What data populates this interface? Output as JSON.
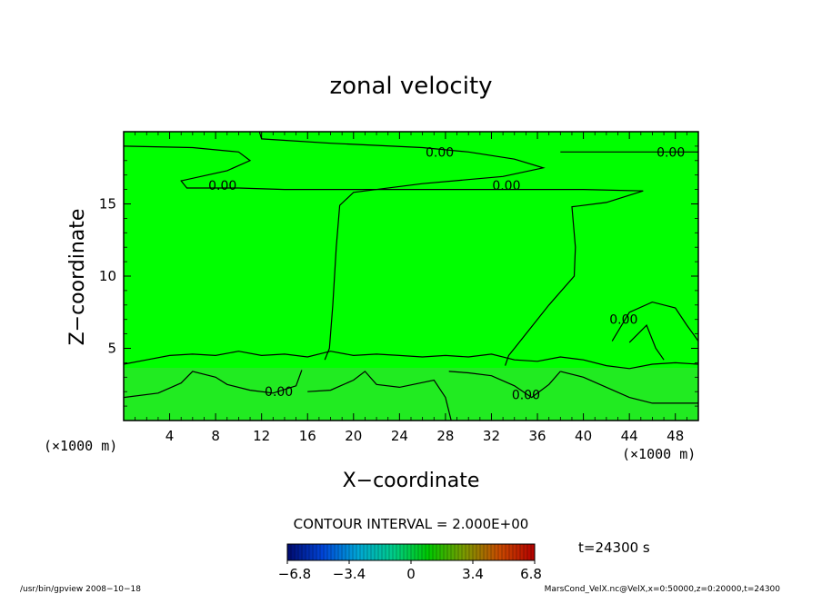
{
  "chart_data": {
    "type": "heatmap",
    "title": "zonal velocity",
    "xlabel": "X−coordinate",
    "ylabel": "Z−coordinate",
    "x_unit_left": "(×1000 m)",
    "x_unit_right": "(×1000 m)",
    "xlim": [
      0,
      50
    ],
    "ylim": [
      0,
      20
    ],
    "x_ticks": [
      4,
      8,
      12,
      16,
      20,
      24,
      28,
      32,
      36,
      40,
      44,
      48
    ],
    "y_ticks": [
      5,
      10,
      15
    ],
    "fill_color": "#00ff00",
    "contour_interval_text": "CONTOUR INTERVAL = 2.000E+00",
    "contour_labels": [
      {
        "text": "0.00",
        "x": 27.5,
        "y": 18.6
      },
      {
        "text": "0.00",
        "x": 47.6,
        "y": 18.6
      },
      {
        "text": "0.00",
        "x": 8.6,
        "y": 16.3
      },
      {
        "text": "0.00",
        "x": 33.3,
        "y": 16.3
      },
      {
        "text": "0.00",
        "x": 13.5,
        "y": 2.0
      },
      {
        "text": "0.00",
        "x": 35.0,
        "y": 1.8
      },
      {
        "text": "0.00",
        "x": 43.5,
        "y": 7.0
      }
    ],
    "contour_lines": [
      [
        [
          0,
          19.0
        ],
        [
          6,
          18.9
        ],
        [
          10,
          18.6
        ],
        [
          11,
          18.0
        ],
        [
          9,
          17.3
        ],
        [
          5,
          16.6
        ],
        [
          5.5,
          16.1
        ],
        [
          10,
          16.1
        ],
        [
          14,
          16.0
        ],
        [
          22,
          16.0
        ],
        [
          30,
          16.0
        ],
        [
          40,
          16.0
        ],
        [
          45.2,
          15.9
        ],
        [
          42,
          15.1
        ],
        [
          39,
          14.8
        ],
        [
          39.3,
          12
        ],
        [
          39.2,
          10
        ],
        [
          37,
          8
        ],
        [
          35,
          6
        ],
        [
          34,
          5
        ],
        [
          33.5,
          4.5
        ],
        [
          33.2,
          3.8
        ]
      ],
      [
        [
          11.8,
          20
        ],
        [
          12,
          19.5
        ],
        [
          18,
          19.2
        ],
        [
          26,
          18.9
        ],
        [
          30,
          18.6
        ],
        [
          34,
          18.1
        ],
        [
          36.5,
          17.5
        ],
        [
          33,
          16.9
        ],
        [
          26,
          16.4
        ],
        [
          20,
          15.8
        ],
        [
          18.8,
          14.9
        ],
        [
          18.5,
          12
        ],
        [
          18.2,
          8
        ],
        [
          17.9,
          5
        ],
        [
          17.5,
          4.2
        ]
      ],
      [
        [
          38,
          18.6
        ],
        [
          45,
          18.6
        ],
        [
          50,
          18.6
        ]
      ],
      [
        [
          0,
          3.9
        ],
        [
          2,
          4.2
        ],
        [
          4,
          4.5
        ],
        [
          6,
          4.6
        ],
        [
          8,
          4.5
        ],
        [
          10,
          4.8
        ],
        [
          12,
          4.5
        ],
        [
          14,
          4.6
        ],
        [
          16,
          4.4
        ],
        [
          18,
          4.8
        ],
        [
          20,
          4.5
        ],
        [
          22,
          4.6
        ],
        [
          24,
          4.5
        ],
        [
          26,
          4.4
        ],
        [
          28,
          4.5
        ],
        [
          30,
          4.4
        ],
        [
          32,
          4.6
        ],
        [
          34,
          4.2
        ],
        [
          36,
          4.1
        ],
        [
          38,
          4.4
        ],
        [
          40,
          4.2
        ],
        [
          42,
          3.8
        ],
        [
          44,
          3.6
        ],
        [
          46,
          3.9
        ],
        [
          48,
          4.0
        ],
        [
          50,
          3.9
        ]
      ],
      [
        [
          0,
          1.6
        ],
        [
          3,
          1.9
        ],
        [
          5,
          2.6
        ],
        [
          6,
          3.4
        ],
        [
          8,
          3.0
        ],
        [
          9,
          2.5
        ],
        [
          11,
          2.1
        ],
        [
          13,
          1.9
        ],
        [
          15,
          2.4
        ],
        [
          15.5,
          3.5
        ]
      ],
      [
        [
          16,
          2.0
        ],
        [
          18,
          2.1
        ],
        [
          20,
          2.8
        ],
        [
          21,
          3.4
        ],
        [
          22,
          2.5
        ],
        [
          24,
          2.3
        ],
        [
          27,
          2.8
        ],
        [
          28,
          1.6
        ],
        [
          28.5,
          0
        ]
      ],
      [
        [
          28.3,
          3.4
        ],
        [
          30,
          3.3
        ],
        [
          32,
          3.1
        ],
        [
          34,
          2.4
        ],
        [
          35.5,
          1.6
        ],
        [
          37,
          2.5
        ],
        [
          38,
          3.4
        ]
      ],
      [
        [
          38,
          3.4
        ],
        [
          40,
          3.0
        ],
        [
          42,
          2.3
        ],
        [
          44,
          1.6
        ],
        [
          46,
          1.2
        ],
        [
          48,
          1.2
        ],
        [
          50,
          1.2
        ]
      ],
      [
        [
          42.5,
          5.5
        ],
        [
          44,
          7.5
        ],
        [
          46,
          8.2
        ],
        [
          48,
          7.8
        ],
        [
          49,
          6.6
        ],
        [
          50,
          5.5
        ]
      ],
      [
        [
          44,
          5.4
        ],
        [
          45.5,
          6.6
        ],
        [
          46.3,
          5.0
        ],
        [
          47,
          4.2
        ]
      ]
    ],
    "colorbar": {
      "tick_labels": [
        "−6.8",
        "−3.4",
        "0",
        "3.4",
        "6.8"
      ],
      "tick_values": [
        -6.8,
        -3.4,
        0,
        3.4,
        6.8
      ],
      "range": [
        -6.8,
        6.8
      ],
      "colors": [
        "#000a6e",
        "#0044d8",
        "#00a6d6",
        "#00cc88",
        "#00c800",
        "#7a9a00",
        "#c84a00",
        "#b40000"
      ]
    },
    "time_text": "t=24300 s"
  },
  "footer": {
    "left": "/usr/bin/gpview   2008−10−18",
    "right": "MarsCond_VelX.nc@VelX,x=0:50000,z=0:20000,t=24300"
  }
}
